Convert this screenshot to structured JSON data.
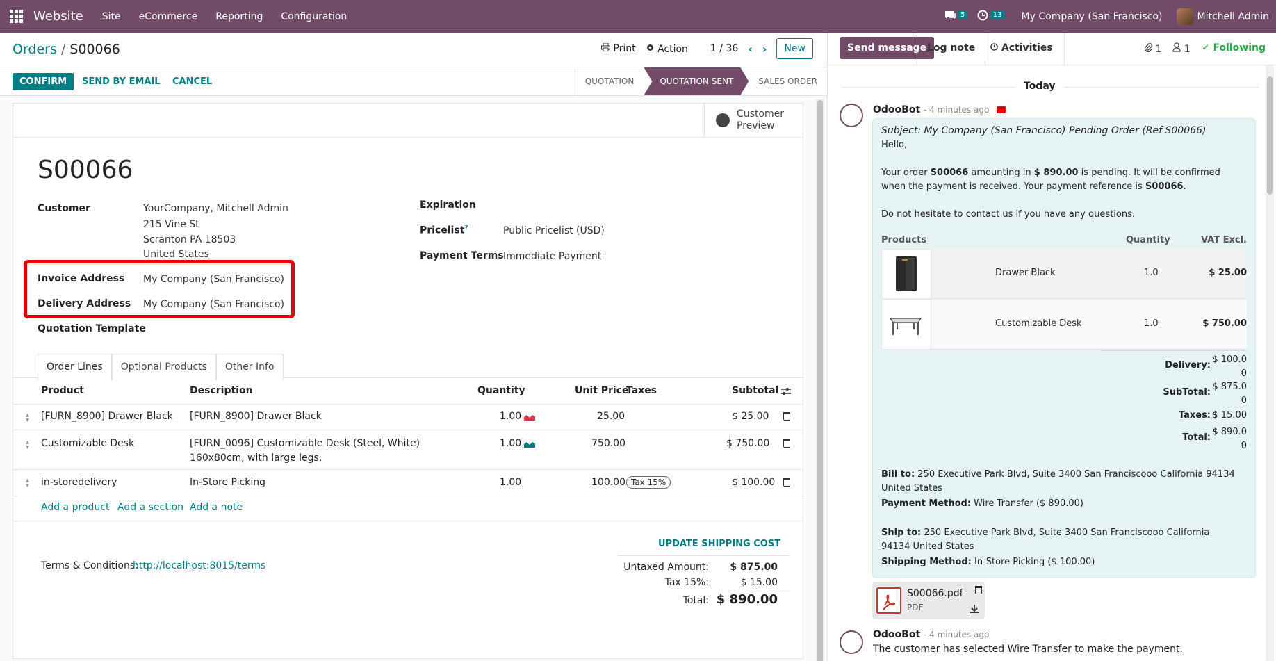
{
  "topbar": {
    "app_name": "Website",
    "menus": [
      "Site",
      "eCommerce",
      "Reporting",
      "Configuration"
    ],
    "messages_count": "5",
    "activities_count": "13",
    "company": "My Company (San Francisco)",
    "user": "Mitchell Admin"
  },
  "breadcrumb": {
    "parent": "Orders",
    "current": "S00066"
  },
  "control": {
    "print": "Print",
    "action": "Action",
    "pager": "1 / 36",
    "new": "New"
  },
  "statusbar": {
    "confirm": "CONFIRM",
    "send_email": "SEND BY EMAIL",
    "cancel": "CANCEL",
    "stages": [
      "QUOTATION",
      "QUOTATION SENT",
      "SALES ORDER"
    ]
  },
  "sheet": {
    "customer_preview": "Customer\nPreview",
    "name": "S00066",
    "customer_label": "Customer",
    "customer_lines": [
      "YourCompany, Mitchell Admin",
      "215 Vine St",
      "Scranton PA 18503",
      "United States"
    ],
    "invoice_label": "Invoice Address",
    "invoice_value": "My Company (San Francisco)",
    "delivery_label": "Delivery Address",
    "delivery_value": "My Company (San Francisco)",
    "template_label": "Quotation Template",
    "expiration_label": "Expiration",
    "pricelist_label": "Pricelist",
    "pricelist_help": "?",
    "pricelist_value": "Public Pricelist (USD)",
    "payment_terms_label": "Payment Terms",
    "payment_terms_value": "Immediate Payment"
  },
  "tabs": [
    "Order Lines",
    "Optional Products",
    "Other Info"
  ],
  "lines": {
    "headers": {
      "product": "Product",
      "description": "Description",
      "quantity": "Quantity",
      "unit_price": "Unit Price",
      "taxes": "Taxes",
      "subtotal": "Subtotal"
    },
    "rows": [
      {
        "product": "[FURN_8900] Drawer Black",
        "description": "[FURN_8900] Drawer Black",
        "description2": "",
        "quantity": "1.00",
        "unit_price": "25.00",
        "tax": "",
        "subtotal": "$ 25.00"
      },
      {
        "product": "Customizable Desk",
        "description": "[FURN_0096] Customizable Desk (Steel, White)",
        "description2": "160x80cm, with large legs.",
        "quantity": "1.00",
        "unit_price": "750.00",
        "tax": "",
        "subtotal": "$ 750.00"
      },
      {
        "product": "in-storedelivery",
        "description": "In-Store Picking",
        "description2": "",
        "quantity": "1.00",
        "unit_price": "100.00",
        "tax": "Tax 15%",
        "subtotal": "$ 100.00"
      }
    ],
    "add_product": "Add a product",
    "add_section": "Add a section",
    "add_note": "Add a note"
  },
  "footer": {
    "terms_label": "Terms & Conditions:",
    "terms_link": "http://localhost:8015/terms",
    "update_shipping": "UPDATE SHIPPING COST",
    "untaxed_label": "Untaxed Amount:",
    "untaxed_value": "$ 875.00",
    "tax_label": "Tax 15%:",
    "tax_value": "$ 15.00",
    "total_label": "Total:",
    "total_value": "$ 890.00"
  },
  "chatter": {
    "send_message": "Send message",
    "log_note": "Log note",
    "activities": "Activities",
    "attachments_count": "1",
    "followers_count": "1",
    "following": "Following",
    "today": "Today",
    "message1": {
      "author": "OdooBot",
      "time": "- 4 minutes ago",
      "subject": "Subject: My Company (San Francisco) Pending Order (Ref S00066)",
      "hello": "Hello,",
      "body_pre": "Your order ",
      "body_order": "S00066",
      "body_mid": " amounting in ",
      "body_amount": "$ 890.00",
      "body_post": " is pending. It will be confirmed when the payment is received. Your payment reference is ",
      "body_ref": "S00066",
      "body_end": ".",
      "contact": "Do not hesitate to contact us if you have any questions.",
      "table_headers": {
        "products": "Products",
        "quantity": "Quantity",
        "vat": "VAT Excl."
      },
      "products": [
        {
          "name": "Drawer Black",
          "qty": "1.0",
          "price": "$ 25.00"
        },
        {
          "name": "Customizable Desk",
          "qty": "1.0",
          "price": "$ 750.00"
        }
      ],
      "summary": [
        {
          "label": "Delivery:",
          "value1": "$ 100.0",
          "value2": "0"
        },
        {
          "label": "SubTotal:",
          "value1": "$ 875.0",
          "value2": "0"
        },
        {
          "label": "Taxes:",
          "value1": "$ 15.00",
          "value2": ""
        },
        {
          "label": "Total:",
          "value1": "$ 890.0",
          "value2": "0"
        }
      ],
      "bill_to_label": "Bill to:",
      "bill_to": " 250 Executive Park Blvd, Suite 3400 San Franciscooo California 94134 United States",
      "payment_method_label": "Payment Method:",
      "payment_method": " Wire Transfer ($ 890.00)",
      "ship_to_label": "Ship to:",
      "ship_to": " 250 Executive Park Blvd, Suite 3400 San Franciscooo California 94134 United States",
      "shipping_method_label": "Shipping Method:",
      "shipping_method": " In-Store Picking ($ 100.00)",
      "attachment_name": "S00066.pdf",
      "attachment_type": "PDF"
    },
    "message2": {
      "author": "OdooBot",
      "time": "- 4 minutes ago",
      "body": "The customer has selected Wire Transfer to make the payment."
    }
  }
}
